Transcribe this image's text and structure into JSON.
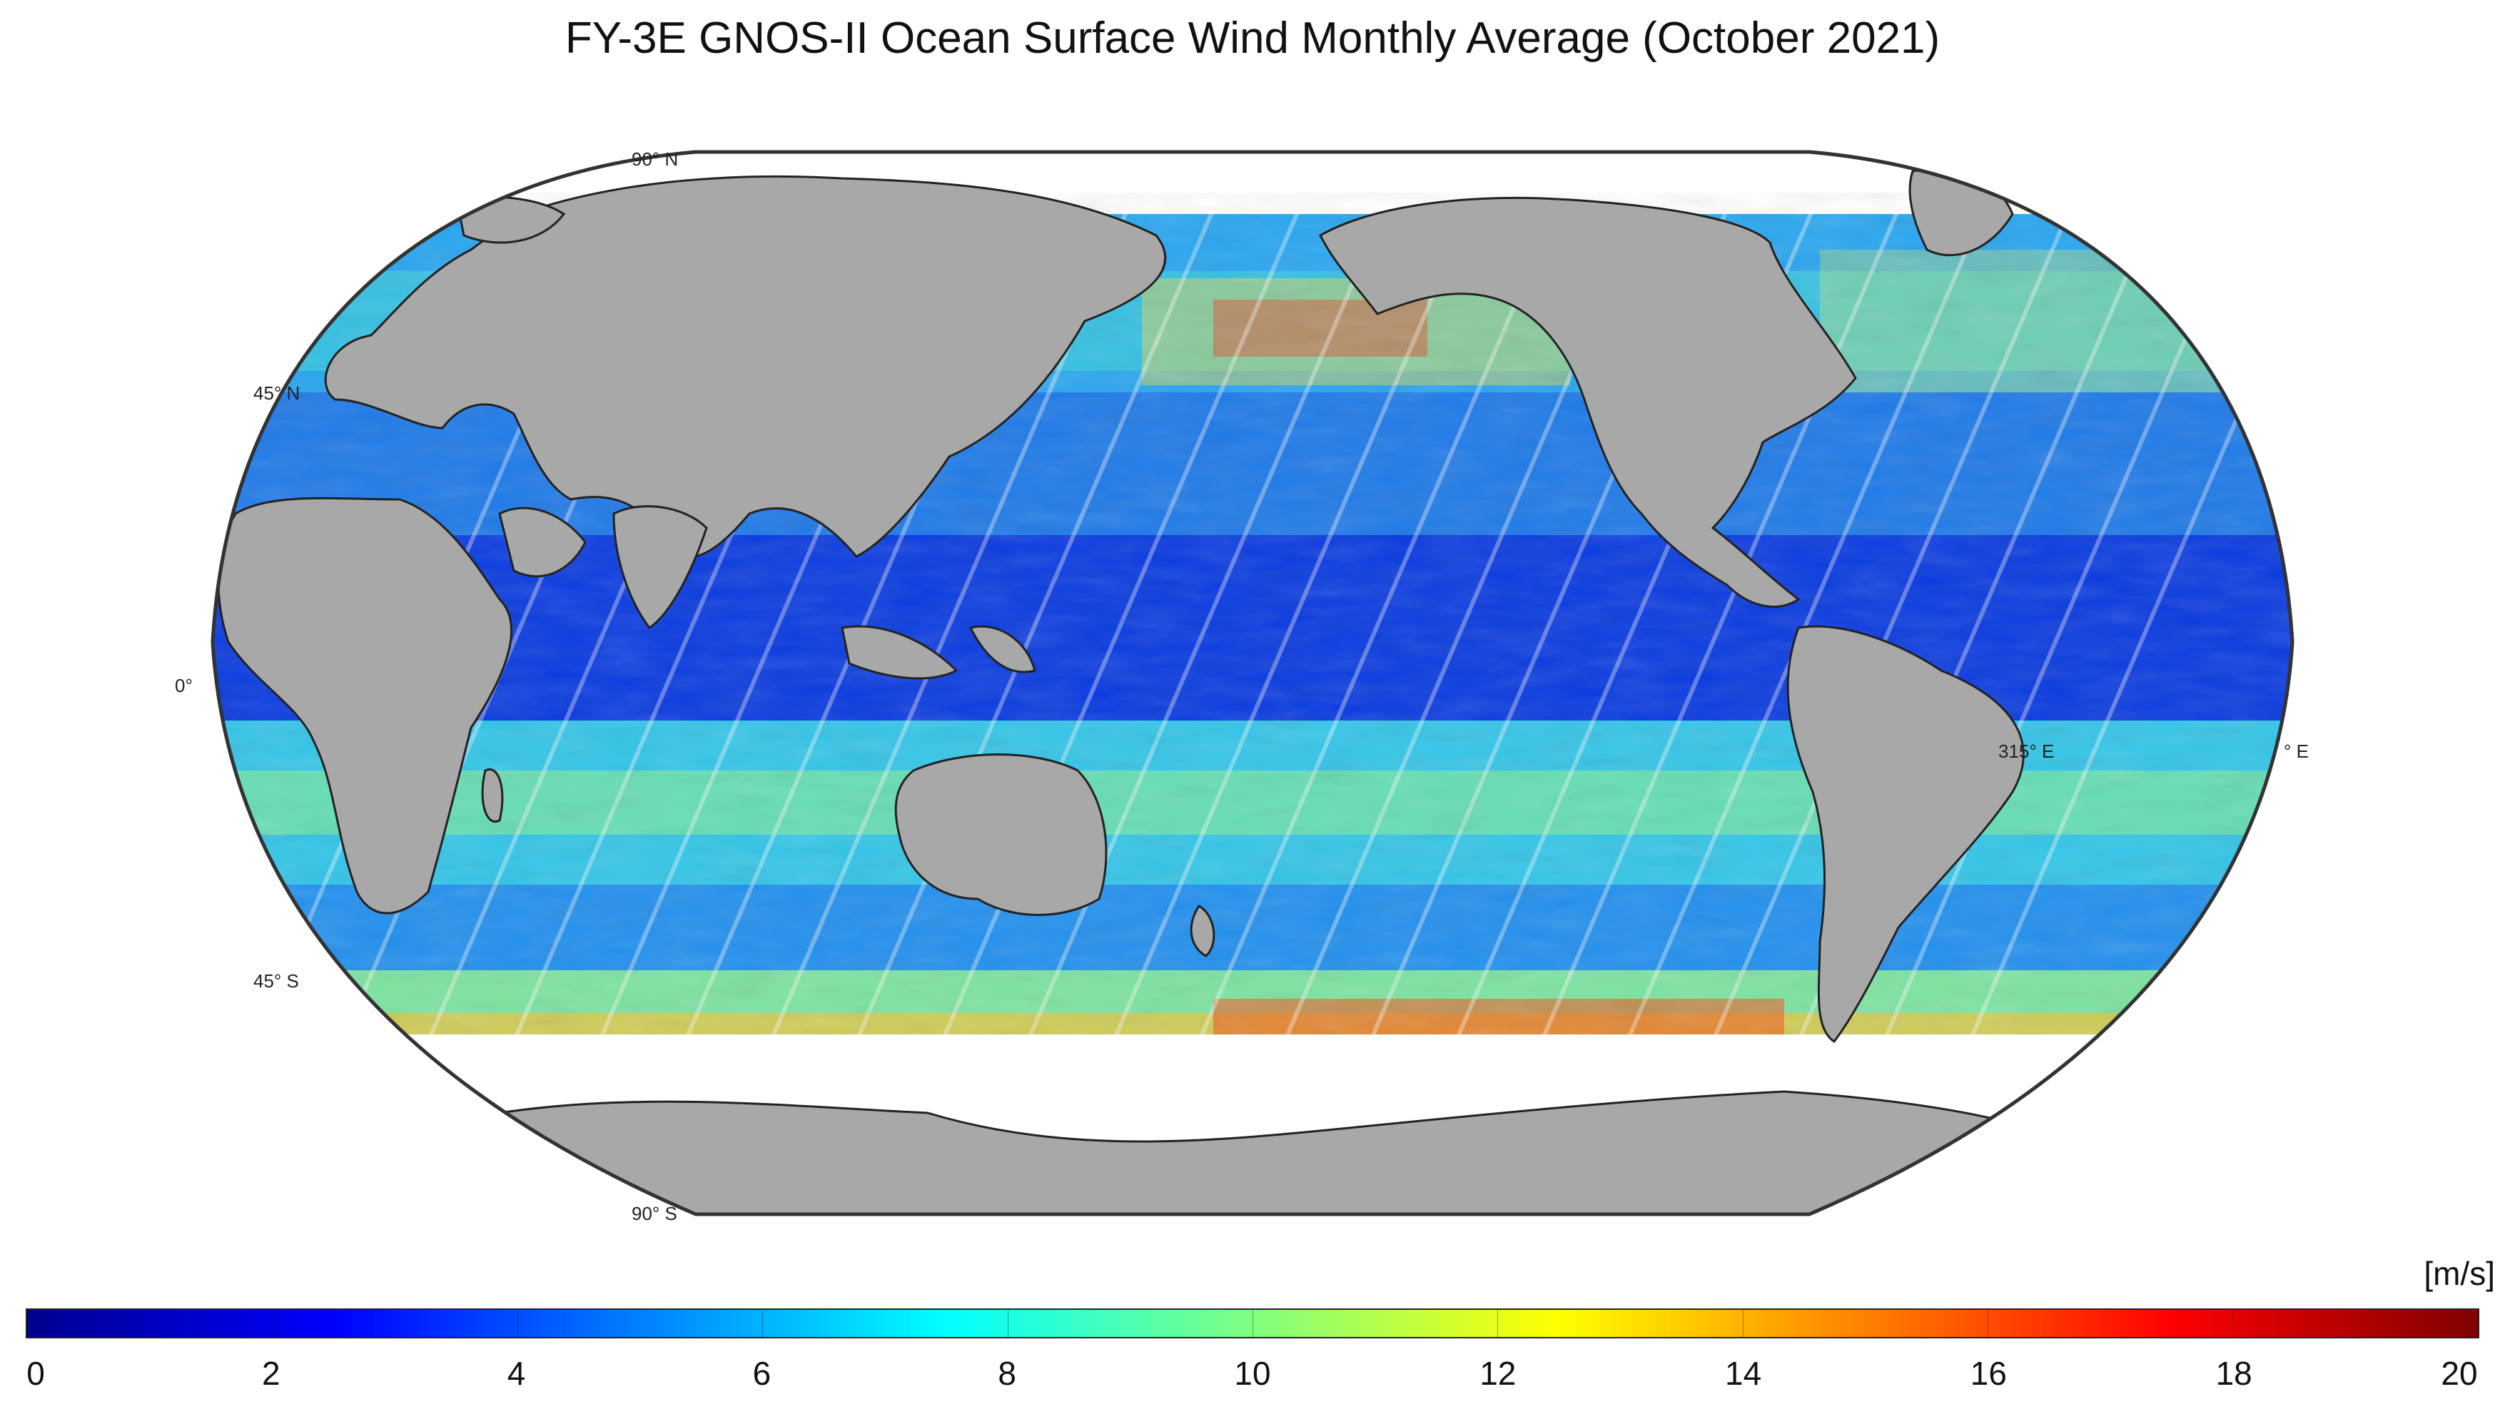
{
  "title": "FY-3E GNOS-II Ocean Surface Wind Monthly Average (October 2021)",
  "map": {
    "projection": "Robinson",
    "land_color": "#a8a8a8",
    "graticule_labels": {
      "lat_90n": "90° N",
      "lat_45n": "45° N",
      "lat_0": "0°",
      "lat_45s": "45° S",
      "lat_90s": "90° S",
      "lon_315e": "315° E",
      "lon_edge_e": "° E"
    }
  },
  "colorbar": {
    "unit": "[m/s]",
    "min": 0,
    "max": 20,
    "ticks": [
      "0",
      "2",
      "4",
      "6",
      "8",
      "10",
      "12",
      "14",
      "16",
      "18",
      "20"
    ],
    "colormap": "jet",
    "gradient": [
      "#00008f",
      "#0000ff",
      "#0080ff",
      "#00ffff",
      "#80ff80",
      "#ffff00",
      "#ff8000",
      "#ff0000",
      "#800000"
    ]
  }
}
